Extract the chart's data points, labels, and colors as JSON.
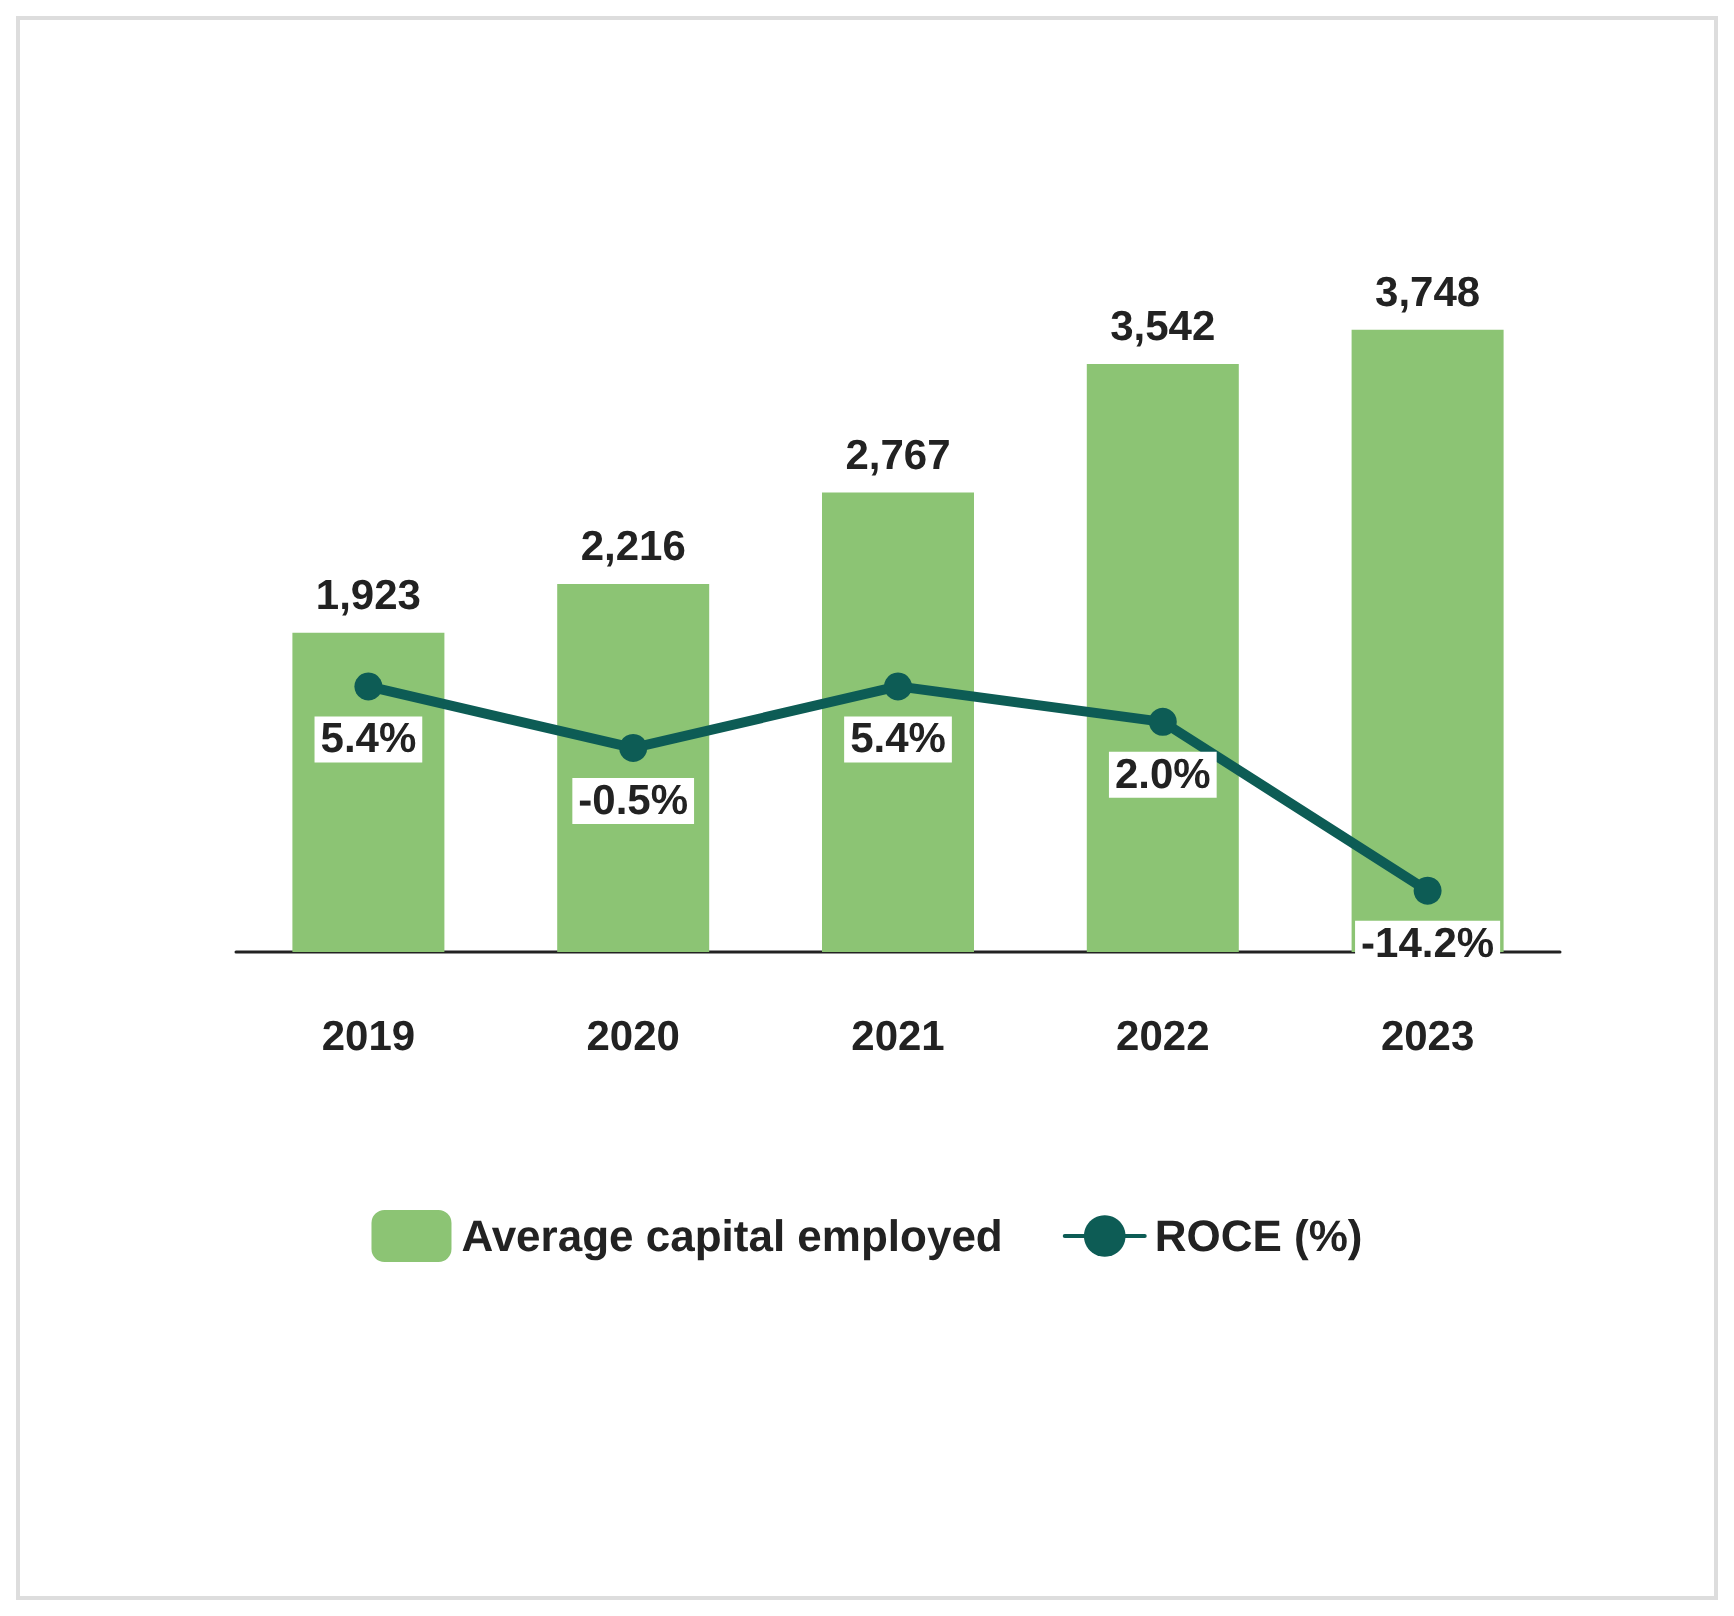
{
  "chart_data": {
    "type": "bar",
    "categories": [
      "2019",
      "2020",
      "2021",
      "2022",
      "2023"
    ],
    "series": [
      {
        "name": "Average capital employed",
        "color": "#8cc474",
        "values": [
          1923,
          2216,
          2767,
          3542,
          3748
        ],
        "value_labels": [
          "1,923",
          "2,216",
          "2,767",
          "3,542",
          "3,748"
        ]
      },
      {
        "name": "ROCE (%)",
        "type": "line",
        "axis": "y2",
        "color": "#0d5c55",
        "values": [
          5.4,
          -0.5,
          5.4,
          2.0,
          -14.2
        ],
        "value_labels": [
          "5.4%",
          "-0.5%",
          "5.4%",
          "2.0%",
          "-14.2%"
        ]
      }
    ],
    "tick_labels": "x",
    "grid": false,
    "legend": "bottom",
    "marker": "circle",
    "line_style": "solid"
  }
}
